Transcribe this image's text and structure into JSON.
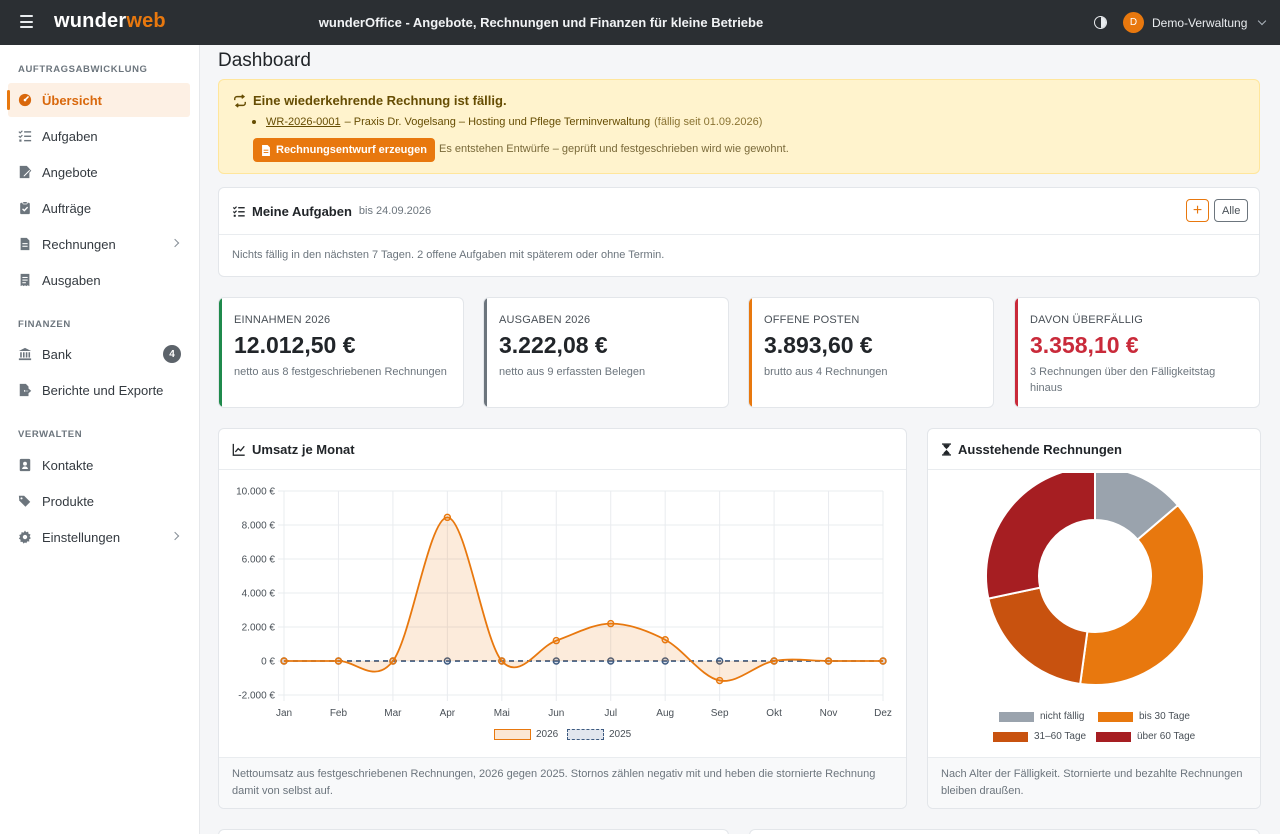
{
  "topbar": {
    "logo_part1": "wunder",
    "logo_part2": "web",
    "title": "wunderOffice - Angebote, Rechnungen und Finanzen für kleine Betriebe",
    "user_initial": "D",
    "user_name": "Demo-Verwaltung",
    "icons": [
      "menu-icon",
      "theme-toggle-icon",
      "chevron-down-icon"
    ]
  },
  "sidebar": {
    "sections": [
      {
        "title": "AUFTRAGSABWICKLUNG",
        "items": [
          {
            "label": "Übersicht",
            "icon": "dashboard-icon",
            "active": true
          },
          {
            "label": "Aufgaben",
            "icon": "tasks-icon"
          },
          {
            "label": "Angebote",
            "icon": "quote-icon"
          },
          {
            "label": "Aufträge",
            "icon": "clipboard-check-icon"
          },
          {
            "label": "Rechnungen",
            "icon": "invoice-icon",
            "has_submenu": true
          },
          {
            "label": "Ausgaben",
            "icon": "receipt-icon"
          }
        ]
      },
      {
        "title": "FINANZEN",
        "items": [
          {
            "label": "Bank",
            "icon": "bank-icon",
            "badge": "4"
          },
          {
            "label": "Berichte und Exporte",
            "icon": "export-icon"
          }
        ]
      },
      {
        "title": "VERWALTEN",
        "items": [
          {
            "label": "Kontakte",
            "icon": "contact-card-icon"
          },
          {
            "label": "Produkte",
            "icon": "tags-icon"
          },
          {
            "label": "Einstellungen",
            "icon": "gear-icon",
            "has_submenu": true
          }
        ]
      }
    ]
  },
  "page": {
    "title": "Dashboard"
  },
  "alert": {
    "title": "Eine wiederkehrende Rechnung ist fällig.",
    "invoice_link": "WR-2026-0001",
    "invoice_text": "– Praxis Dr. Vogelsang – Hosting und Pflege Terminverwaltung",
    "due_text": "(fällig seit 01.09.2026)",
    "button_label": "Rechnungsentwurf erzeugen",
    "hint": "Es entstehen Entwürfe – geprüft und festgeschrieben wird wie gewohnt."
  },
  "tasks": {
    "title": "Meine Aufgaben",
    "subtitle": "bis 24.09.2026",
    "add_label": "+",
    "all_label": "Alle",
    "empty_text": "Nichts fällig in den nächsten 7 Tagen. 2 offene Aufgaben mit späterem oder ohne Termin."
  },
  "kpis": [
    {
      "label": "EINNAHMEN 2026",
      "value": "12.012,50 €",
      "sub": "netto aus 8 festgeschriebenen Rechnungen",
      "accent": "#1f8a4c"
    },
    {
      "label": "AUSGABEN 2026",
      "value": "3.222,08 €",
      "sub": "netto aus 9 erfassten Belegen",
      "accent": "#6c757d"
    },
    {
      "label": "OFFENE POSTEN",
      "value": "3.893,60 €",
      "sub": "brutto aus 4 Rechnungen",
      "accent": "#e8780e"
    },
    {
      "label": "DAVON ÜBERFÄLLIG",
      "value": "3.358,10 €",
      "sub": "3 Rechnungen über den Fälligkeitstag hinaus",
      "accent": "#c92a3a",
      "value_color": "#c92a3a"
    }
  ],
  "revenue_card": {
    "title": "Umsatz je Monat",
    "footer": "Nettoumsatz aus festgeschriebenen Rechnungen, 2026 gegen 2025. Stornos zählen negativ mit und heben die stornierte Rechnung damit von selbst auf."
  },
  "outstanding_card": {
    "title": "Ausstehende Rechnungen",
    "footer": "Nach Alter der Fälligkeit. Stornierte und bezahlte Rechnungen bleiben draußen."
  },
  "chart_data": [
    {
      "type": "line",
      "title": "Umsatz je Monat",
      "x": [
        "Jan",
        "Feb",
        "Mar",
        "Apr",
        "Mai",
        "Jun",
        "Jul",
        "Aug",
        "Sep",
        "Okt",
        "Nov",
        "Dez"
      ],
      "y_ticks": [
        "10.000 €",
        "8.000 €",
        "6.000 €",
        "4.000 €",
        "2.000 €",
        "0 €",
        "-2.000 €"
      ],
      "ylim": [
        -2000,
        10000
      ],
      "grid": true,
      "legend_position": "bottom",
      "series": [
        {
          "name": "2026",
          "values": [
            0,
            0,
            0,
            8450,
            0,
            1200,
            2200,
            1250,
            -1150,
            0,
            0,
            0
          ],
          "color": "#e8780e",
          "fill": "rgba(232,120,14,0.15)"
        },
        {
          "name": "2025",
          "values": [
            0,
            0,
            0,
            0,
            0,
            0,
            0,
            0,
            0,
            0,
            0,
            0
          ],
          "color": "#3d5a80",
          "fill": "rgba(108,130,170,0.2)",
          "dashed": true
        }
      ]
    },
    {
      "type": "pie",
      "title": "Ausstehende Rechnungen",
      "categories": [
        "nicht fällig",
        "bis 30 Tage",
        "31–60 Tage",
        "über 60 Tage"
      ],
      "values": [
        535.5,
        1496,
        759.3,
        1102.8
      ],
      "colors": [
        "#9aa3ad",
        "#e8780e",
        "#c8520f",
        "#a61e22"
      ],
      "legend_position": "bottom"
    }
  ]
}
